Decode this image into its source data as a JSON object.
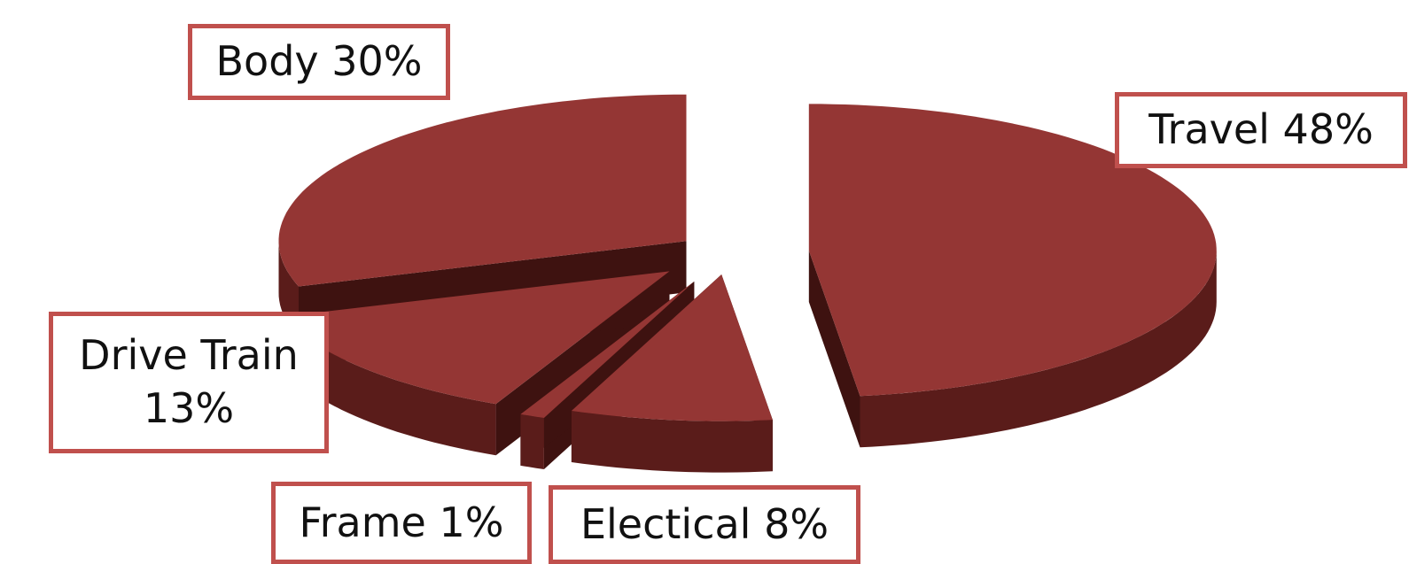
{
  "colors": {
    "slice_top": "#943634",
    "slice_side": "#5a1c1a",
    "slice_dark": "#3e1210",
    "label_border": "#c0504d"
  },
  "chart_data": {
    "type": "pie",
    "style": "3d-exploded",
    "title": "",
    "slices": [
      {
        "name": "Travel",
        "value": 48,
        "label_lines": [
          "Travel 48%"
        ]
      },
      {
        "name": "Electical",
        "value": 8,
        "label_lines": [
          "Electical 8%"
        ]
      },
      {
        "name": "Frame",
        "value": 1,
        "label_lines": [
          "Frame 1%"
        ]
      },
      {
        "name": "Drive Train",
        "value": 13,
        "label_lines": [
          "Drive Train",
          "13%"
        ]
      },
      {
        "name": "Body",
        "value": 30,
        "label_lines": [
          "Body 30%"
        ]
      }
    ],
    "legend": "none"
  }
}
